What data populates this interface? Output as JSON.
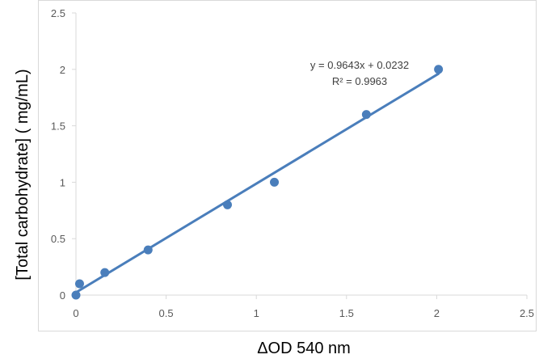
{
  "chart_data": {
    "type": "scatter",
    "title": "",
    "xlabel": "ΔOD 540 nm",
    "ylabel": "[Total carbohydrate] ( mg/mL)",
    "xlim": [
      0,
      2.5
    ],
    "ylim": [
      0,
      2.5
    ],
    "x_ticks": [
      "0",
      "0.5",
      "1",
      "1.5",
      "2",
      "2.5"
    ],
    "y_ticks": [
      "0",
      "0.5",
      "1",
      "1.5",
      "2",
      "2.5"
    ],
    "grid": false,
    "legend": "none",
    "series": [
      {
        "color": "#4a7ebb",
        "points": [
          {
            "x": 0.0,
            "y": 0.0
          },
          {
            "x": 0.02,
            "y": 0.1
          },
          {
            "x": 0.16,
            "y": 0.2
          },
          {
            "x": 0.4,
            "y": 0.4
          },
          {
            "x": 0.84,
            "y": 0.8
          },
          {
            "x": 1.1,
            "y": 1.0
          },
          {
            "x": 1.61,
            "y": 1.6
          },
          {
            "x": 2.01,
            "y": 2.0
          }
        ]
      }
    ],
    "trendline": {
      "type": "linear",
      "slope": 0.9643,
      "intercept": 0.0232,
      "x_range": [
        0,
        2.01
      ],
      "color": "#4a7ebb",
      "equation_text": "y = 0.9643x + 0.0232",
      "r2_text": "R² = 0.9963"
    },
    "colors": {
      "axis": "#d9d9d9",
      "tick_text": "#595959"
    }
  }
}
